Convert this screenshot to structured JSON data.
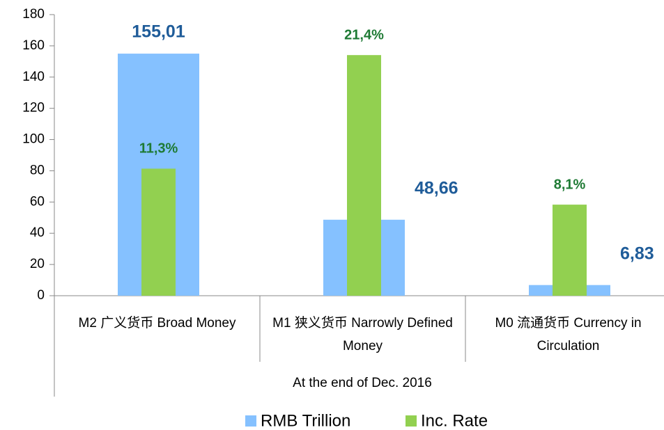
{
  "chart_data": {
    "type": "bar",
    "categories": [
      "M2 广义货币 Broad Money",
      "M1 狭义货币 Narrowly Defined Money",
      "M0 流通货币 Currency in Circulation"
    ],
    "category_group": "At the end of Dec. 2016",
    "series": [
      {
        "name": "RMB Trillion",
        "color": "#85c1ff",
        "values": [
          155.01,
          48.66,
          6.83
        ],
        "value_labels": [
          "155,01",
          "48,66",
          "6,83"
        ]
      },
      {
        "name": "Inc. Rate",
        "color": "#92d050",
        "axis": "y2",
        "values": [
          11.3,
          21.4,
          8.1
        ],
        "value_labels": [
          "11,3%",
          "21,4%",
          "8,1%"
        ]
      }
    ],
    "ylim": [
      0,
      180
    ],
    "yticks": [
      0,
      20,
      40,
      60,
      80,
      100,
      120,
      140,
      160,
      180
    ],
    "y2lim": [
      0,
      25
    ],
    "legend": "bottom"
  }
}
